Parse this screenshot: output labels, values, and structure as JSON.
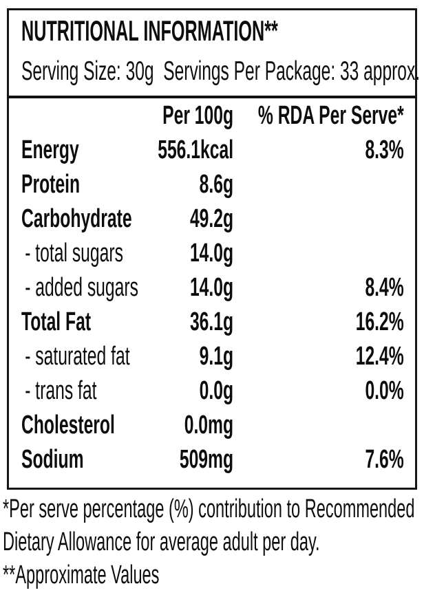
{
  "label": {
    "title": "NUTRITIONAL INFORMATION**",
    "serving_info": "Serving Size: 30g  Servings Per Package: 33 approx.",
    "columns": {
      "per_100g": "Per 100g",
      "rda_per_serve": "% RDA Per Serve*"
    },
    "rows": [
      {
        "name": "Energy",
        "amount": "556.1kcal",
        "rda": "8.3%",
        "style": "bold"
      },
      {
        "name": "Protein",
        "amount": "8.6g",
        "rda": "",
        "style": "bold"
      },
      {
        "name": "Carbohydrate",
        "amount": "49.2g",
        "rda": "",
        "style": "bold"
      },
      {
        "name": "- total sugars",
        "amount": "14.0g",
        "rda": "",
        "style": "sub"
      },
      {
        "name": "- added sugars",
        "amount": "14.0g",
        "rda": "8.4%",
        "style": "sub"
      },
      {
        "name": "Total Fat",
        "amount": "36.1g",
        "rda": "16.2%",
        "style": "bold"
      },
      {
        "name": "- saturated fat",
        "amount": "9.1g",
        "rda": "12.4%",
        "style": "sub"
      },
      {
        "name": "- trans fat",
        "amount": "0.0g",
        "rda": "0.0%",
        "style": "sub"
      },
      {
        "name": "Cholesterol",
        "amount": "0.0mg",
        "rda": "",
        "style": "bold"
      },
      {
        "name": "Sodium",
        "amount": "509mg",
        "rda": "7.6%",
        "style": "bold"
      }
    ],
    "footnotes": [
      "*Per serve percentage (%) contribution to Recommended",
      "Dietary Allowance for average adult per day.",
      "**Approximate Values"
    ]
  },
  "colors": {
    "text": "#0d0d0d",
    "border": "#161616",
    "background": "#ffffff"
  }
}
